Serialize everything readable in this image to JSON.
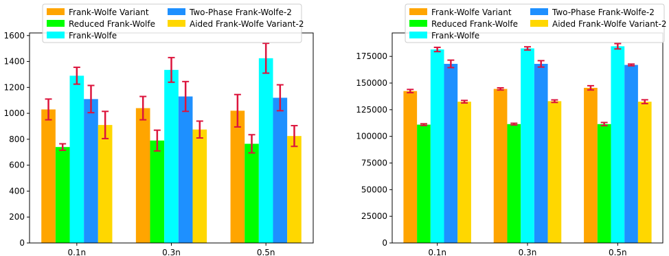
{
  "chart_data": [
    {
      "type": "bar",
      "categories": [
        "0.1n",
        "0.3n",
        "0.5n"
      ],
      "ylim": [
        0,
        1620
      ],
      "yticks": [
        0,
        200,
        400,
        600,
        800,
        1000,
        1200,
        1400,
        1600
      ],
      "grid": false,
      "legend_position": "top",
      "series": [
        {
          "name": "Frank-Wolfe Variant",
          "color": "#ffa500",
          "values": [
            1030,
            1040,
            1020
          ],
          "errors": [
            80,
            90,
            125
          ]
        },
        {
          "name": "Reduced Frank-Wolfe",
          "color": "#00ff00",
          "values": [
            740,
            790,
            765
          ],
          "errors": [
            25,
            80,
            70
          ]
        },
        {
          "name": "Frank-Wolfe",
          "color": "#00ffff",
          "values": [
            1290,
            1335,
            1425
          ],
          "errors": [
            65,
            95,
            115
          ]
        },
        {
          "name": "Two-Phase Frank-Wolfe-2",
          "color": "#1e90ff",
          "values": [
            1110,
            1130,
            1120
          ],
          "errors": [
            105,
            115,
            100
          ]
        },
        {
          "name": "Aided Frank-Wolfe Variant-2",
          "color": "#ffd700",
          "values": [
            910,
            875,
            825
          ],
          "errors": [
            105,
            65,
            80
          ]
        }
      ],
      "error_color": "#dc143c"
    },
    {
      "type": "bar",
      "categories": [
        "0.1n",
        "0.3n",
        "0.5n"
      ],
      "ylim": [
        0,
        197000
      ],
      "yticks": [
        0,
        25000,
        50000,
        75000,
        100000,
        125000,
        150000,
        175000
      ],
      "grid": false,
      "legend_position": "top",
      "series": [
        {
          "name": "Frank-Wolfe Variant",
          "color": "#ffa500",
          "values": [
            142500,
            144500,
            145500
          ],
          "errors": [
            1500,
            1000,
            2000
          ]
        },
        {
          "name": "Reduced Frank-Wolfe",
          "color": "#00ff00",
          "values": [
            111000,
            111500,
            111500
          ],
          "errors": [
            800,
            800,
            1500
          ]
        },
        {
          "name": "Frank-Wolfe",
          "color": "#00ffff",
          "values": [
            181500,
            182500,
            184500
          ],
          "errors": [
            2000,
            1500,
            2500
          ]
        },
        {
          "name": "Two-Phase Frank-Wolfe-2",
          "color": "#1e90ff",
          "values": [
            168000,
            168000,
            167000
          ],
          "errors": [
            3500,
            3000,
            800
          ]
        },
        {
          "name": "Aided Frank-Wolfe Variant-2",
          "color": "#ffd700",
          "values": [
            132500,
            133000,
            132500
          ],
          "errors": [
            1200,
            1200,
            1800
          ]
        }
      ],
      "error_color": "#dc143c"
    }
  ]
}
